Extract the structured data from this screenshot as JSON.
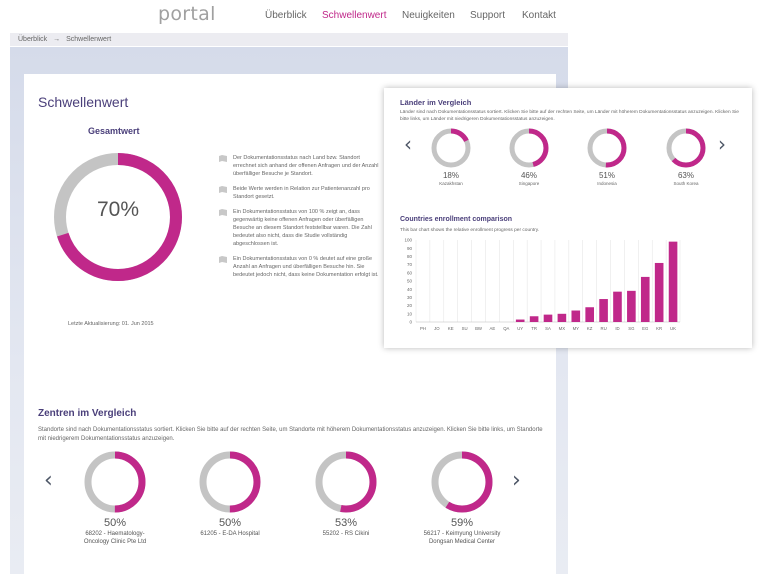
{
  "nav": {
    "logo": "portal",
    "items": [
      "Überblick",
      "Schwellenwert",
      "Neuigkeiten",
      "Support",
      "Kontakt"
    ],
    "active_index": 1
  },
  "breadcrumb": {
    "items": [
      "Überblick",
      "Schwellenwert"
    ],
    "separator": "→"
  },
  "page": {
    "title": "Schwellenwert",
    "gesamt_label": "Gesamtwert",
    "gesamt_value": 70,
    "gesamt_pct": "70%",
    "last_update": "Letzte Aktualisierung: 01. Jun 2015",
    "bullets": [
      "Der Dokumentationsstatus nach Land bzw. Standort errechnet sich anhand der offenen Anfragen und der Anzahl überfälliger Besuche je Standort.",
      "Beide Werte werden in Relation zur Patientenanzahl pro Standort gesetzt.",
      "Ein Dokumentationsstatus von 100 % zeigt an, dass gegenwärtig keine offenen Anfragen oder überfälligen Besuche an diesem Standort feststellbar waren. Die Zahl bedeutet also nicht, dass die Studie vollständig abgeschlossen ist.",
      "Ein Dokumentationsstatus von 0 % deutet auf eine große Anzahl an Anfragen und überfälligen Besuche hin. Sie bedeutet jedoch nicht, dass keine Dokumentation erfolgt ist."
    ]
  },
  "zentren": {
    "title": "Zentren im Vergleich",
    "description": "Standorte sind nach Dokumentationsstatus sortiert. Klicken Sie bitte auf der rechten Seite, um Standorte mit höherem Dokumentationsstatus anzuzeigen. Klicken Sie bitte links, um Standorte mit niedrigerem Dokumentationsstatus anzuzeigen.",
    "items": [
      {
        "value": 50,
        "pct": "50%",
        "name_line1": "68202 - Haematology-",
        "name_line2": "Oncology Clinic Pte Ltd"
      },
      {
        "value": 50,
        "pct": "50%",
        "name_line1": "61205 - E-DA Hospital",
        "name_line2": ""
      },
      {
        "value": 53,
        "pct": "53%",
        "name_line1": "55202 - RS Cikini",
        "name_line2": ""
      },
      {
        "value": 59,
        "pct": "59%",
        "name_line1": "56217 - Keimyung University",
        "name_line2": "Dongsan Medical Center"
      }
    ]
  },
  "laender": {
    "title": "Länder im Vergleich",
    "description": "Länder sind nach Dokumentationsstatus sortiert. Klicken Sie bitte auf der rechten Seite, um Länder mit höherem Dokumentationsstatus anzuzeigen. Klicken Sie bitte links, um Länder mit niedrigeren Dokumentationsstatus anzuzeigen.",
    "items": [
      {
        "value": 18,
        "pct": "18%",
        "name": "Kazakhstan"
      },
      {
        "value": 46,
        "pct": "46%",
        "name": "Singapore"
      },
      {
        "value": 51,
        "pct": "51%",
        "name": "Indonesia"
      },
      {
        "value": 63,
        "pct": "63%",
        "name": "South Korea"
      }
    ]
  },
  "comparison": {
    "title": "Countries enrollment comparison",
    "description": "This bar chart shows the relative enrollment progress per country."
  },
  "chart_data": {
    "type": "bar",
    "categories": [
      "PH",
      "JO",
      "KE",
      "SU",
      "BW",
      "AE",
      "QA",
      "UY",
      "TR",
      "SA",
      "MX",
      "MY",
      "KZ",
      "RU",
      "ID",
      "SG",
      "EG",
      "KR",
      "UK"
    ],
    "values": [
      0,
      0,
      0,
      0,
      0,
      0,
      0,
      3,
      7,
      9,
      10,
      14,
      18,
      28,
      37,
      38,
      55,
      72,
      98
    ],
    "ylim": [
      0,
      100
    ],
    "yticks": [
      0,
      10,
      20,
      30,
      40,
      50,
      60,
      70,
      80,
      90,
      100
    ],
    "grid": "vertical"
  },
  "colors": {
    "accent": "#c0288a",
    "track": "#c4c4c4",
    "heading": "#4a3f7a",
    "arrow": "#4d5666"
  },
  "icons": {
    "bullet": "document-icon",
    "prev": "chevron-left-icon",
    "next": "chevron-right-icon"
  }
}
